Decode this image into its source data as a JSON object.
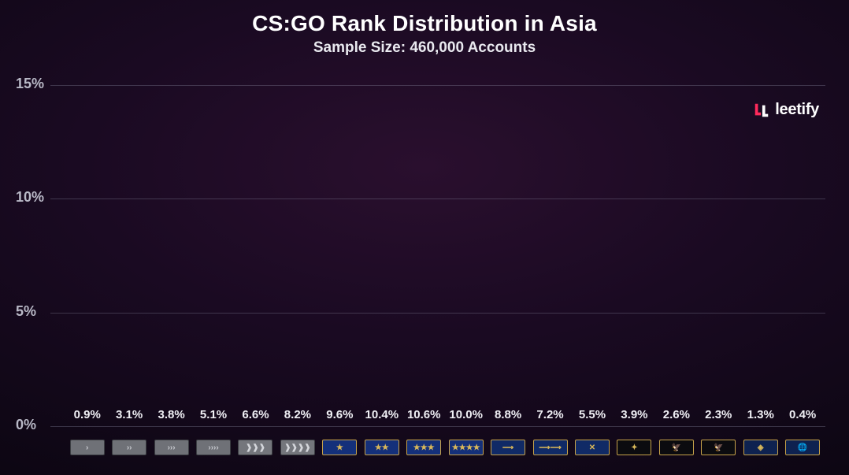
{
  "title": "CS:GO Rank Distribution in Asia",
  "subtitle": "Sample Size: 460,000 Accounts",
  "logo": {
    "text": "leetify",
    "mark_color_a": "#ff2a5c",
    "mark_color_b": "#ffffff"
  },
  "chart": {
    "type": "bar",
    "ylim": [
      0,
      15
    ],
    "yticks": [
      0,
      5,
      10,
      15
    ],
    "ytick_labels": [
      "0%",
      "5%",
      "10%",
      "15%"
    ],
    "ylabel_color": "#b9b9c7",
    "gridline_color": "#8a8aa0",
    "gridline_opacity": 0.35,
    "bar_gradient_top": "#ff3a7a",
    "bar_gradient_bottom": "#4a1f9e",
    "value_label_fontsize": 15,
    "value_label_color": "#f0f0f5",
    "background": "radial-gradient(#2a0f2e, #0c0612)",
    "data": [
      {
        "rank": "s1",
        "value": 0.9,
        "label": "0.9%"
      },
      {
        "rank": "s2",
        "value": 3.1,
        "label": "3.1%"
      },
      {
        "rank": "s3",
        "value": 3.8,
        "label": "3.8%"
      },
      {
        "rank": "s4",
        "value": 5.1,
        "label": "5.1%"
      },
      {
        "rank": "se",
        "value": 6.6,
        "label": "6.6%"
      },
      {
        "rank": "sem",
        "value": 8.2,
        "label": "8.2%"
      },
      {
        "rank": "gn1",
        "value": 9.6,
        "label": "9.6%"
      },
      {
        "rank": "gn2",
        "value": 10.4,
        "label": "10.4%"
      },
      {
        "rank": "gn3",
        "value": 10.6,
        "label": "10.6%"
      },
      {
        "rank": "gnm",
        "value": 10.0,
        "label": "10.0%"
      },
      {
        "rank": "mg1",
        "value": 8.8,
        "label": "8.8%"
      },
      {
        "rank": "mg2",
        "value": 7.2,
        "label": "7.2%"
      },
      {
        "rank": "mge",
        "value": 5.5,
        "label": "5.5%"
      },
      {
        "rank": "dmg",
        "value": 3.9,
        "label": "3.9%"
      },
      {
        "rank": "le",
        "value": 2.6,
        "label": "2.6%"
      },
      {
        "rank": "lem",
        "value": 2.3,
        "label": "2.3%"
      },
      {
        "rank": "smfc",
        "value": 1.3,
        "label": "1.3%"
      },
      {
        "rank": "ge",
        "value": 0.4,
        "label": "0.4%"
      }
    ],
    "rank_badges": {
      "s1": {
        "bg": "#6f7177",
        "border": "#3b3d42",
        "glyph": "›",
        "fg": "#c9cbd1"
      },
      "s2": {
        "bg": "#6f7177",
        "border": "#3b3d42",
        "glyph": "››",
        "fg": "#c9cbd1"
      },
      "s3": {
        "bg": "#6f7177",
        "border": "#3b3d42",
        "glyph": "›››",
        "fg": "#c9cbd1"
      },
      "s4": {
        "bg": "#6f7177",
        "border": "#3b3d42",
        "glyph": "››››",
        "fg": "#c9cbd1"
      },
      "se": {
        "bg": "#74767c",
        "border": "#3b3d42",
        "glyph": "❱❱❱",
        "fg": "#d4d6db"
      },
      "sem": {
        "bg": "#74767c",
        "border": "#3b3d42",
        "glyph": "❱❱❱❱",
        "fg": "#d4d6db"
      },
      "gn1": {
        "bg": "#14307a",
        "border": "#c6a24a",
        "glyph": "★",
        "fg": "#d9b85a"
      },
      "gn2": {
        "bg": "#14307a",
        "border": "#c6a24a",
        "glyph": "★★",
        "fg": "#d9b85a"
      },
      "gn3": {
        "bg": "#14307a",
        "border": "#c6a24a",
        "glyph": "★★★",
        "fg": "#d9b85a"
      },
      "gnm": {
        "bg": "#14307a",
        "border": "#c6a24a",
        "glyph": "★★★★",
        "fg": "#d9b85a"
      },
      "mg1": {
        "bg": "#102a66",
        "border": "#c6a24a",
        "glyph": "⟶",
        "fg": "#d9b85a"
      },
      "mg2": {
        "bg": "#102a66",
        "border": "#c6a24a",
        "glyph": "⟶⟶",
        "fg": "#d9b85a"
      },
      "mge": {
        "bg": "#102a66",
        "border": "#c6a24a",
        "glyph": "✕",
        "fg": "#d9b85a"
      },
      "dmg": {
        "bg": "#0b0b0f",
        "border": "#c6a24a",
        "glyph": "✦",
        "fg": "#d9b85a"
      },
      "le": {
        "bg": "#0b0b0f",
        "border": "#c6a24a",
        "glyph": "🦅",
        "fg": "#d9b85a"
      },
      "lem": {
        "bg": "#0b0b0f",
        "border": "#c6a24a",
        "glyph": "🦅",
        "fg": "#e8c964"
      },
      "smfc": {
        "bg": "#0e2250",
        "border": "#c6a24a",
        "glyph": "◈",
        "fg": "#d9b85a"
      },
      "ge": {
        "bg": "#0e2250",
        "border": "#c6a24a",
        "glyph": "🌐",
        "fg": "#7fb8e8"
      }
    }
  }
}
